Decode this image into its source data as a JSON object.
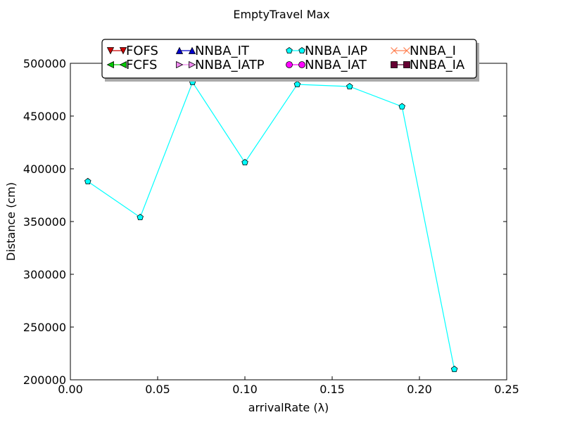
{
  "chart_data": {
    "type": "line",
    "title": "EmptyTravel Max",
    "xlabel": "arrivalRate (λ)",
    "ylabel": "Distance (cm)",
    "xlim": [
      0.0,
      0.25
    ],
    "ylim": [
      200000,
      500000
    ],
    "x_ticks": [
      "0.00",
      "0.05",
      "0.10",
      "0.15",
      "0.20",
      "0.25"
    ],
    "y_ticks": [
      "200000",
      "250000",
      "300000",
      "350000",
      "400000",
      "450000",
      "500000"
    ],
    "grid": false,
    "legend_position": "top-center",
    "legend": [
      {
        "label": "FOFS",
        "color": "#cc0000",
        "marker": "triangle-down"
      },
      {
        "label": "FCFS",
        "color": "#00cc00",
        "marker": "triangle-left"
      },
      {
        "label": "NNBA_IT",
        "color": "#0000cc",
        "marker": "triangle-up"
      },
      {
        "label": "NNBA_IATP",
        "color": "#ee88ee",
        "marker": "triangle-right"
      },
      {
        "label": "NNBA_IAP",
        "color": "#00ffff",
        "marker": "pentagon"
      },
      {
        "label": "NNBA_IAT",
        "color": "#ff00ff",
        "marker": "circle"
      },
      {
        "label": "NNBA_I",
        "color": "#ff7f50",
        "marker": "x"
      },
      {
        "label": "NNBA_IA",
        "color": "#660033",
        "marker": "square"
      }
    ],
    "series": [
      {
        "name": "NNBA_IAP",
        "color": "#00ffff",
        "marker": "pentagon",
        "x": [
          0.01,
          0.04,
          0.07,
          0.1,
          0.13,
          0.16,
          0.19,
          0.22
        ],
        "values": [
          388000,
          354000,
          482000,
          406000,
          480000,
          478000,
          459000,
          210000
        ]
      }
    ]
  }
}
